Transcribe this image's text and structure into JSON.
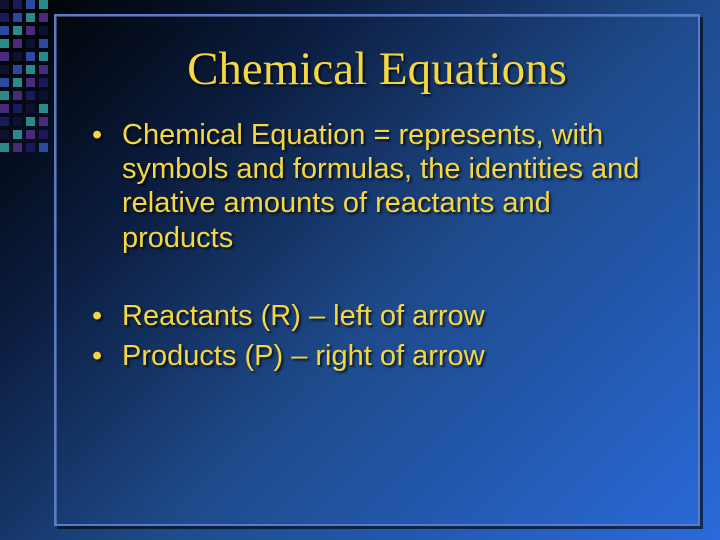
{
  "slide": {
    "title": "Chemical Equations",
    "bullets": [
      "Chemical Equation = represents, with symbols and formulas, the identities and relative amounts of reactants and products",
      "Reactants (R) – left of arrow",
      "Products (P) – right of arrow"
    ],
    "title_fontsize": 47,
    "body_fontsize": 29,
    "title_font_family": "Times New Roman",
    "body_font_family": "Arial",
    "text_color": "#f5d742",
    "text_shadow": "2px 2px 2px rgba(0,0,0,0.7)",
    "frame_border_color": "#5a7acb",
    "background_gradient": [
      "#000000",
      "#0a1a3a",
      "#1e4a8a",
      "#2a6adb"
    ],
    "deco_palette": {
      "purple": "#4a2a7a",
      "navy": "#1a1a5a",
      "blue": "#2a4aa0",
      "teal": "#2a8a8a",
      "dk": "#101030"
    }
  }
}
